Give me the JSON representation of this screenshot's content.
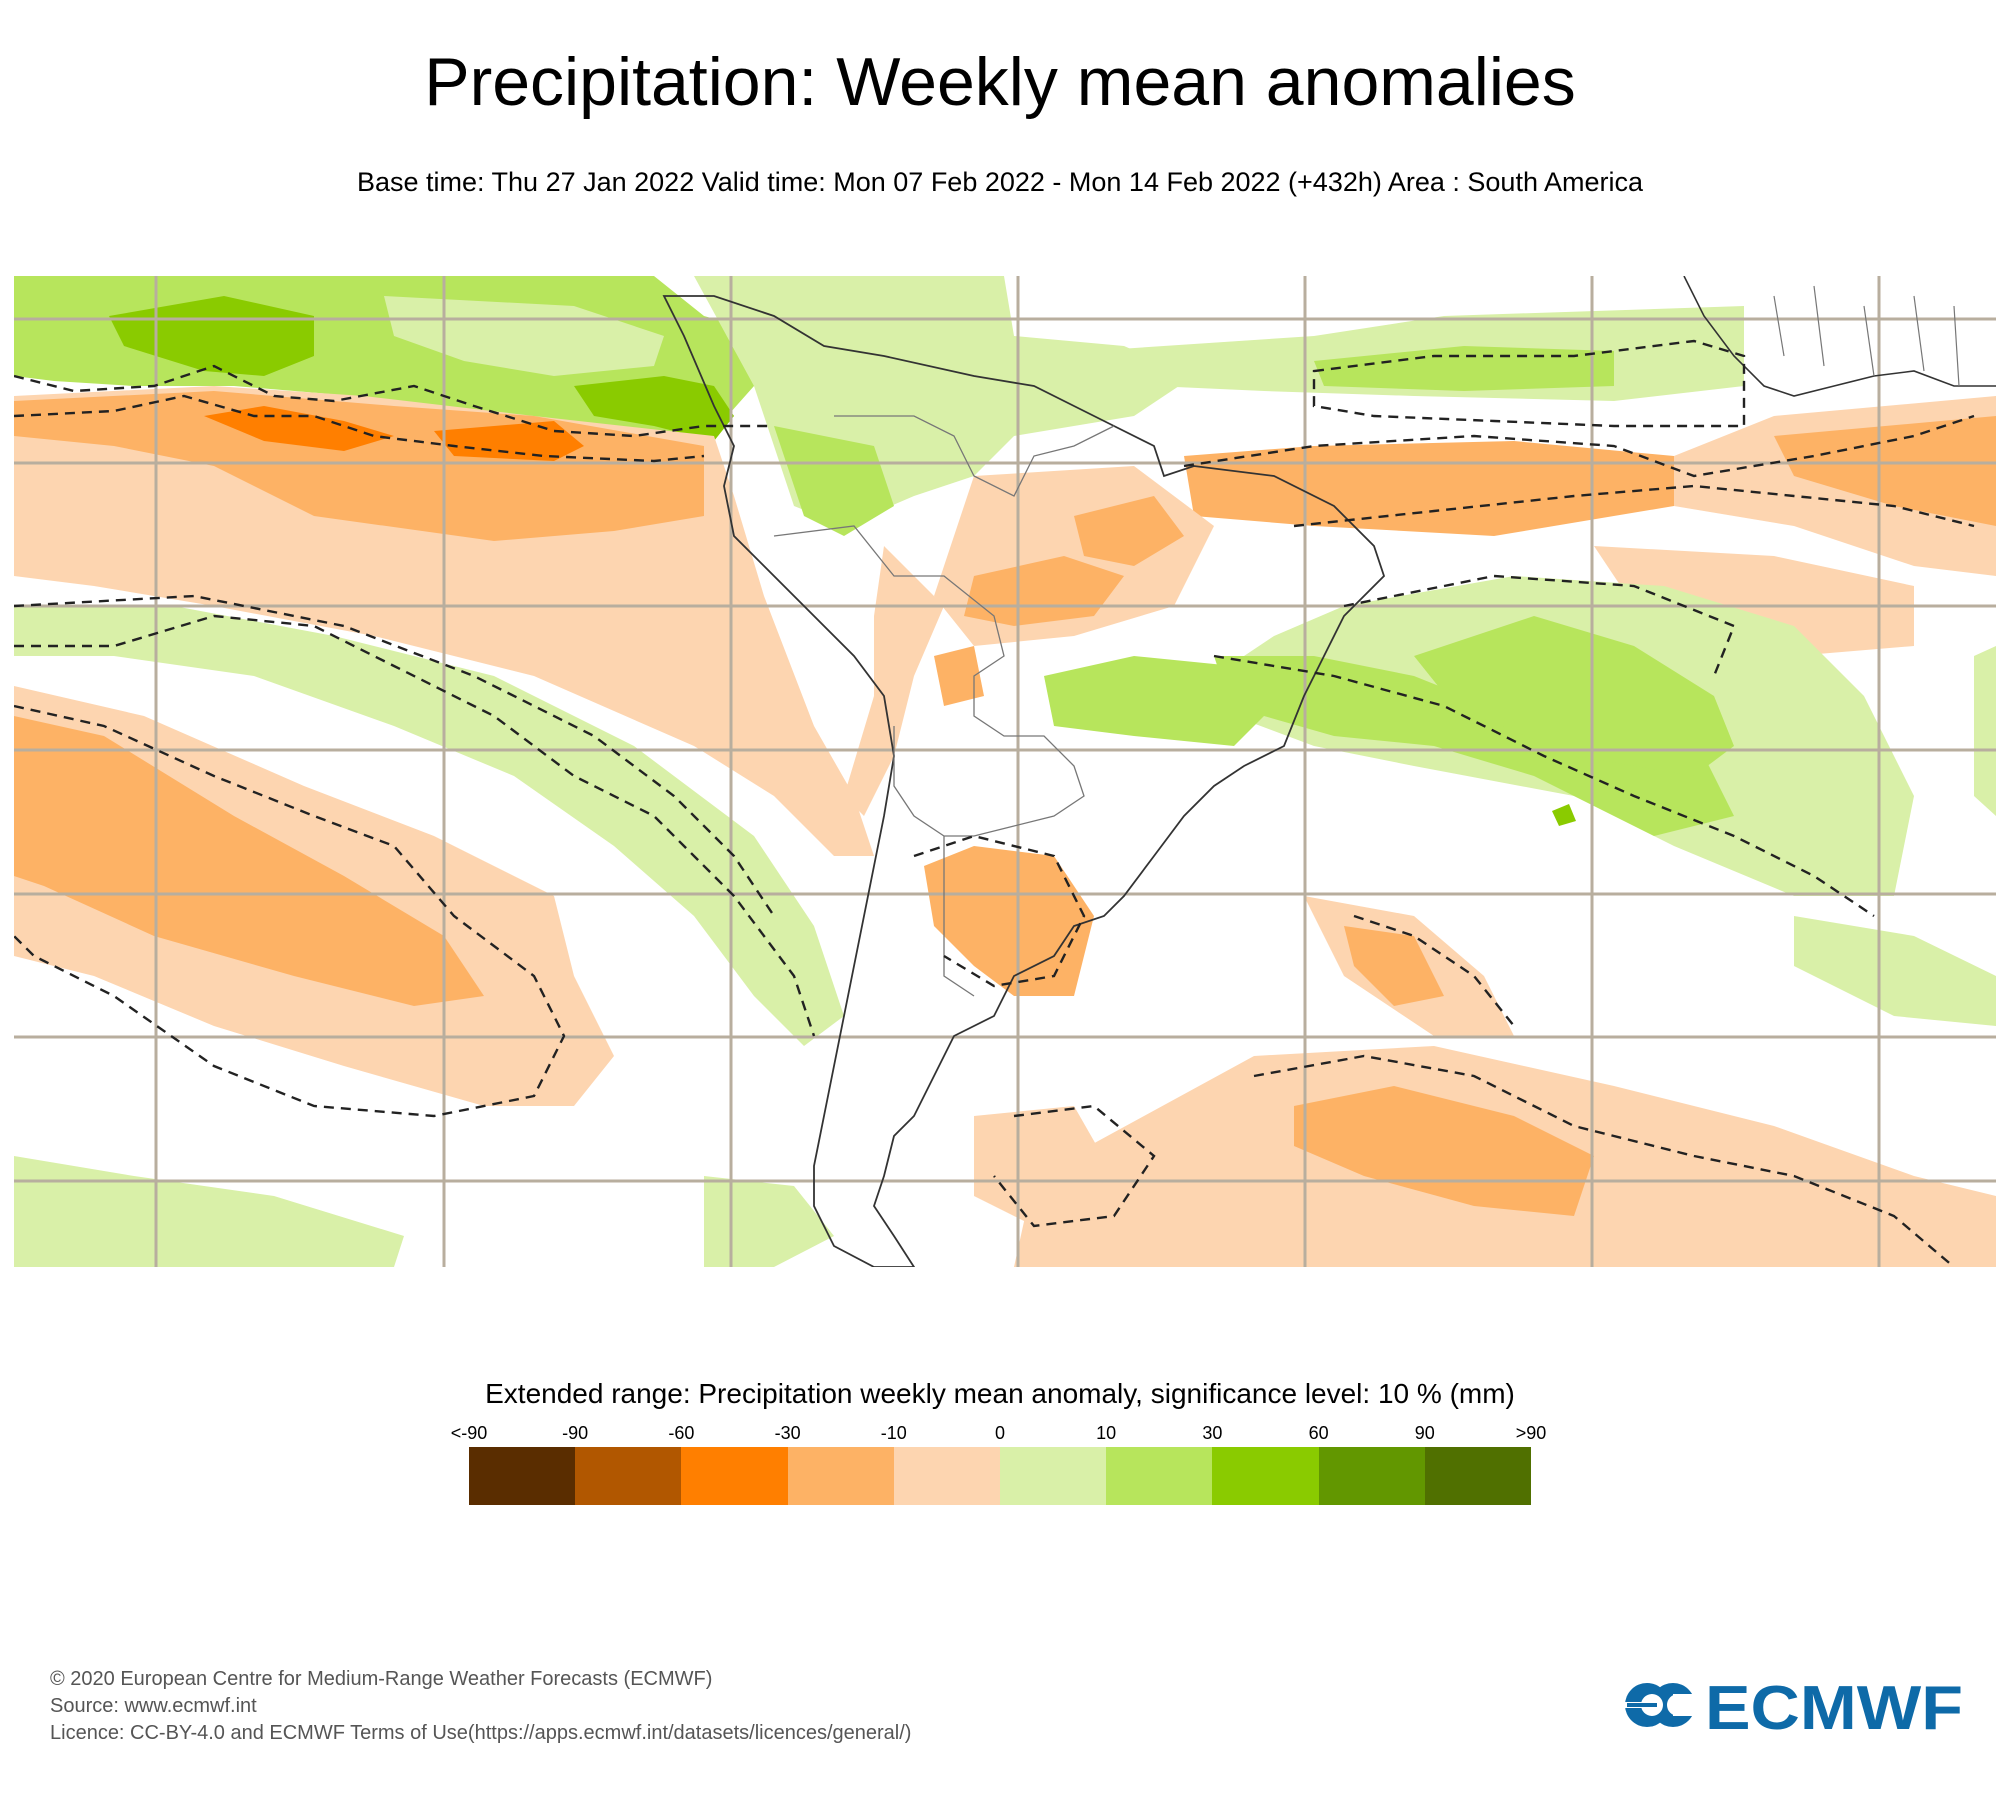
{
  "header": {
    "title": "Precipitation: Weekly mean anomalies",
    "subtitle": "Base time: Thu 27 Jan 2022 Valid time: Mon 07 Feb 2022 - Mon 14 Feb 2022 (+432h) Area : South America"
  },
  "map": {
    "area": "South America",
    "significance_contour": "dashed",
    "colors": {
      "lt_m90": "#5a2d00",
      "m90_m60": "#b15700",
      "m60_m30": "#ff7f00",
      "m30_m10": "#fdb265",
      "m10_0": "#fdd5b0",
      "0_10": "#d9f0a8",
      "10_30": "#b7e55c",
      "30_60": "#8acb00",
      "60_90": "#629700",
      "gt_90": "#507000",
      "gridline": "#b8ae9e",
      "coastline": "#333333",
      "contour": "#222222"
    }
  },
  "legend": {
    "title": "Extended range: Precipitation weekly mean anomaly, significance level: 10 % (mm)",
    "labels": [
      "<-90",
      "-90",
      "-60",
      "-30",
      "-10",
      "0",
      "10",
      "30",
      "60",
      "90",
      ">90"
    ],
    "colors": [
      "#5a2d00",
      "#b15700",
      "#ff7f00",
      "#fdb265",
      "#fdd5b0",
      "#d9f0a8",
      "#b7e55c",
      "#8acb00",
      "#629700",
      "#507000"
    ]
  },
  "footer": {
    "copyright": "© 2020 European Centre for Medium-Range Weather Forecasts (ECMWF)",
    "source": "Source: www.ecmwf.int",
    "licence": "Licence: CC-BY-4.0 and ECMWF Terms of Use(https://apps.ecmwf.int/datasets/licences/general/)"
  },
  "logo": {
    "text": "ECMWF",
    "color": "#0e6aa8"
  }
}
